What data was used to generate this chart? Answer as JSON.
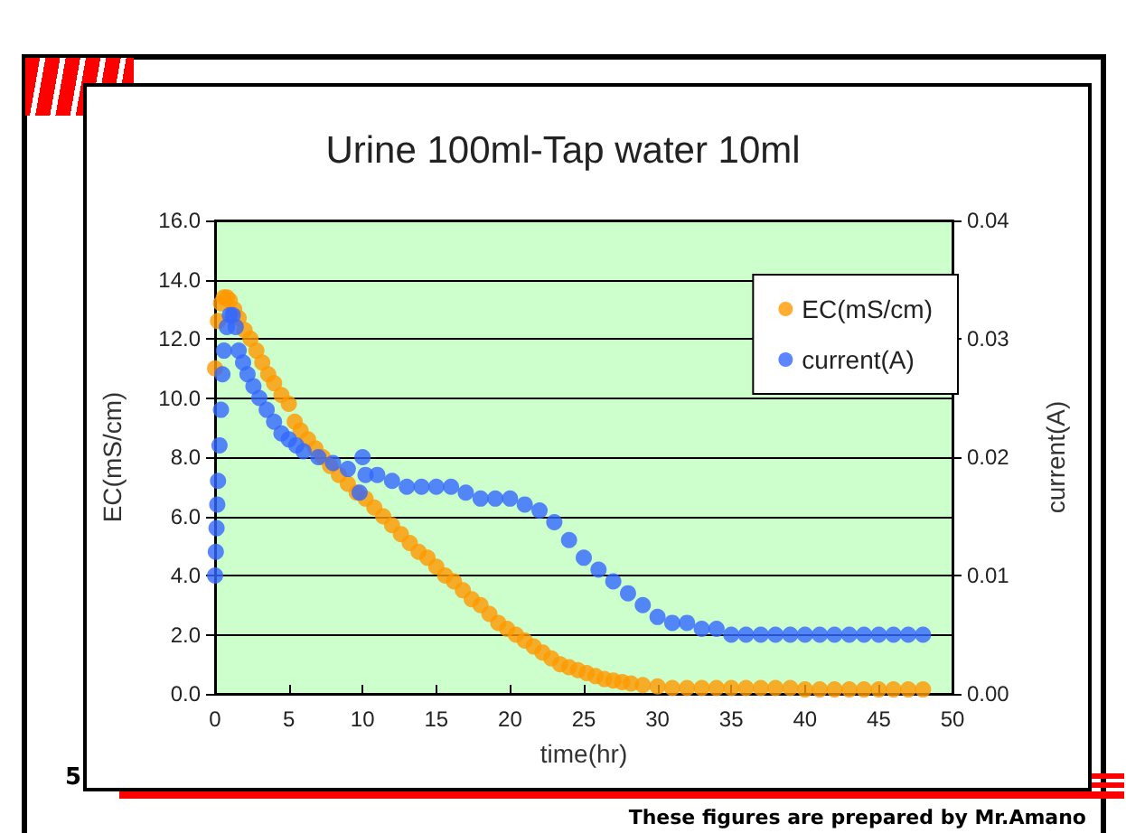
{
  "chart_data": {
    "type": "scatter",
    "title": "Urine 100ml-Tap water 10ml",
    "xlabel": "time(hr)",
    "ylabel": "EC(mS/cm)",
    "y2label": "current(A)",
    "annotations": [
      "5",
      "These figures are prepared by Mr.Amano"
    ],
    "xlim": [
      0,
      50
    ],
    "xticks": [
      0,
      5,
      10,
      15,
      20,
      25,
      30,
      35,
      40,
      45,
      50
    ],
    "ylim": [
      0,
      16
    ],
    "yticks": [
      {
        "value": 0,
        "label": "0.0"
      },
      {
        "value": 2,
        "label": "2.0"
      },
      {
        "value": 4,
        "label": "4.0"
      },
      {
        "value": 6,
        "label": "6.0"
      },
      {
        "value": 8,
        "label": "8.0"
      },
      {
        "value": 10,
        "label": "10.0"
      },
      {
        "value": 12,
        "label": "12.0"
      },
      {
        "value": 14,
        "label": "14.0"
      },
      {
        "value": 16,
        "label": "16.0"
      }
    ],
    "y2lim": [
      0,
      0.04
    ],
    "y2ticks": [
      {
        "value": 0,
        "label": "0.00"
      },
      {
        "value": 0.01,
        "label": "0.01"
      },
      {
        "value": 0.02,
        "label": "0.02"
      },
      {
        "value": 0.03,
        "label": "0.03"
      },
      {
        "value": 0.04,
        "label": "0.04"
      }
    ],
    "grid": "y",
    "legend": "top right",
    "marker": "circle",
    "series": [
      {
        "name": "EC(mS/cm)",
        "color": "#ff9900",
        "x": [
          0,
          0.2,
          0.4,
          0.6,
          0.8,
          1.0,
          1.3,
          1.6,
          2.0,
          2.4,
          2.8,
          3.2,
          3.6,
          4.0,
          4.5,
          5.0,
          5.4,
          5.8,
          6.3,
          6.8,
          7.3,
          7.8,
          8.4,
          9.0,
          9.6,
          10.2,
          10.8,
          11.4,
          12.0,
          12.6,
          13.2,
          13.8,
          14.4,
          15.0,
          15.6,
          16.2,
          16.8,
          17.4,
          18.0,
          18.6,
          19.2,
          19.8,
          20.4,
          21.0,
          21.6,
          22.2,
          22.8,
          23.4,
          24.0,
          24.6,
          25.2,
          25.8,
          26.4,
          27.0,
          27.6,
          28.2,
          29.0,
          30.0,
          31.0,
          32.0,
          33.0,
          34.0,
          35.0,
          36.0,
          37.0,
          38.0,
          39.0,
          40.0,
          41.0,
          42.0,
          43.0,
          44.0,
          45.0,
          46.0,
          47.0,
          48.0
        ],
        "values": [
          11.0,
          12.6,
          13.2,
          13.4,
          13.4,
          13.3,
          13.0,
          12.7,
          12.3,
          12.0,
          11.6,
          11.2,
          10.8,
          10.5,
          10.1,
          9.8,
          9.2,
          8.9,
          8.6,
          8.3,
          8.0,
          7.7,
          7.4,
          7.1,
          6.8,
          6.6,
          6.3,
          6.0,
          5.7,
          5.4,
          5.1,
          4.8,
          4.6,
          4.3,
          4.0,
          3.8,
          3.5,
          3.2,
          3.0,
          2.7,
          2.4,
          2.2,
          2.0,
          1.8,
          1.6,
          1.4,
          1.2,
          1.0,
          0.9,
          0.8,
          0.7,
          0.6,
          0.5,
          0.45,
          0.4,
          0.35,
          0.3,
          0.25,
          0.2,
          0.2,
          0.2,
          0.2,
          0.2,
          0.2,
          0.2,
          0.2,
          0.2,
          0.15,
          0.15,
          0.15,
          0.15,
          0.15,
          0.15,
          0.15,
          0.15,
          0.15
        ]
      },
      {
        "name": "current(A)",
        "color": "#3366ff",
        "axis": "y2",
        "x": [
          0,
          0.05,
          0.1,
          0.15,
          0.2,
          0.3,
          0.4,
          0.5,
          0.6,
          0.8,
          1.0,
          1.2,
          1.4,
          1.6,
          1.9,
          2.2,
          2.6,
          3.0,
          3.5,
          4.0,
          4.5,
          5.0,
          5.5,
          6.0,
          7.0,
          8.0,
          9.0,
          9.8,
          10.0,
          10.2,
          11.0,
          12.0,
          13.0,
          14.0,
          15.0,
          16.0,
          17.0,
          18.0,
          19.0,
          20.0,
          21.0,
          22.0,
          23.0,
          24.0,
          25.0,
          26.0,
          27.0,
          28.0,
          29.0,
          30.0,
          31.0,
          32.0,
          33.0,
          34.0,
          35.0,
          36.0,
          37.0,
          38.0,
          39.0,
          40.0,
          41.0,
          42.0,
          43.0,
          44.0,
          45.0,
          46.0,
          47.0,
          48.0
        ],
        "values": [
          0.01,
          0.012,
          0.014,
          0.016,
          0.018,
          0.021,
          0.024,
          0.027,
          0.029,
          0.031,
          0.032,
          0.032,
          0.031,
          0.029,
          0.028,
          0.027,
          0.026,
          0.025,
          0.024,
          0.023,
          0.022,
          0.0215,
          0.021,
          0.0205,
          0.02,
          0.0195,
          0.019,
          0.017,
          0.02,
          0.0185,
          0.0185,
          0.018,
          0.0175,
          0.0175,
          0.0175,
          0.0175,
          0.017,
          0.0165,
          0.0165,
          0.0165,
          0.016,
          0.0155,
          0.0145,
          0.013,
          0.0115,
          0.0105,
          0.0095,
          0.0085,
          0.0075,
          0.0065,
          0.006,
          0.006,
          0.0055,
          0.0055,
          0.005,
          0.005,
          0.005,
          0.005,
          0.005,
          0.005,
          0.005,
          0.005,
          0.005,
          0.005,
          0.005,
          0.005,
          0.005,
          0.005
        ]
      }
    ]
  }
}
